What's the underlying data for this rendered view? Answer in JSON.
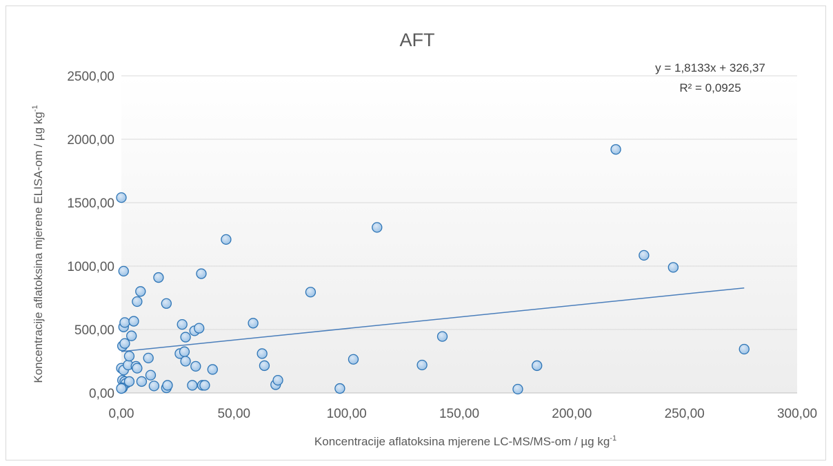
{
  "chart_data": {
    "type": "scatter",
    "title": "AFT",
    "xlabel": "Koncentracije aflatoksina mjerene LC-MS/MS-om / µg kg",
    "xlabel_sup": "-1",
    "ylabel": "Koncentracije aflatoksina mjerene  ELISA-om / µg kg",
    "ylabel_sup": "-1",
    "xlim": [
      0,
      300
    ],
    "ylim": [
      0,
      2500
    ],
    "x_ticks": [
      "0,00",
      "50,00",
      "100,00",
      "150,00",
      "200,00",
      "250,00",
      "300,00"
    ],
    "y_ticks": [
      "0,00",
      "500,00",
      "1000,00",
      "1500,00",
      "2000,00",
      "2500,00"
    ],
    "grid": true,
    "marker_color": "#9dc3e6",
    "marker_edge_color": "#2e75b6",
    "trendline_color": "#4a7ebb",
    "trendline": {
      "slope": 1.8133,
      "intercept": 326.37,
      "equation": "y = 1,8133x + 326,37",
      "r2": "R² = 0,0925"
    },
    "points": [
      {
        "x": 0.0,
        "y": 1540
      },
      {
        "x": 1.0,
        "y": 960
      },
      {
        "x": 1.0,
        "y": 520
      },
      {
        "x": 1.5,
        "y": 555
      },
      {
        "x": 0.5,
        "y": 370
      },
      {
        "x": 1.5,
        "y": 390
      },
      {
        "x": 0.0,
        "y": 195
      },
      {
        "x": 1.0,
        "y": 180
      },
      {
        "x": 0.5,
        "y": 100
      },
      {
        "x": 1.5,
        "y": 90
      },
      {
        "x": 2.0,
        "y": 75
      },
      {
        "x": 0.5,
        "y": 40
      },
      {
        "x": 0.0,
        "y": 35
      },
      {
        "x": 3.0,
        "y": 220
      },
      {
        "x": 3.5,
        "y": 90
      },
      {
        "x": 3.5,
        "y": 290
      },
      {
        "x": 4.5,
        "y": 450
      },
      {
        "x": 5.5,
        "y": 565
      },
      {
        "x": 7.0,
        "y": 720
      },
      {
        "x": 8.5,
        "y": 800
      },
      {
        "x": 6.5,
        "y": 210
      },
      {
        "x": 7.0,
        "y": 195
      },
      {
        "x": 9.0,
        "y": 90
      },
      {
        "x": 12.0,
        "y": 275
      },
      {
        "x": 13.0,
        "y": 140
      },
      {
        "x": 14.5,
        "y": 55
      },
      {
        "x": 16.5,
        "y": 910
      },
      {
        "x": 20.0,
        "y": 705
      },
      {
        "x": 20.0,
        "y": 40
      },
      {
        "x": 20.5,
        "y": 60
      },
      {
        "x": 26.0,
        "y": 310
      },
      {
        "x": 27.0,
        "y": 540
      },
      {
        "x": 28.0,
        "y": 325
      },
      {
        "x": 28.5,
        "y": 440
      },
      {
        "x": 28.5,
        "y": 250
      },
      {
        "x": 31.5,
        "y": 60
      },
      {
        "x": 32.5,
        "y": 490
      },
      {
        "x": 33.0,
        "y": 210
      },
      {
        "x": 34.5,
        "y": 510
      },
      {
        "x": 35.5,
        "y": 940
      },
      {
        "x": 36.0,
        "y": 60
      },
      {
        "x": 37.0,
        "y": 60
      },
      {
        "x": 40.5,
        "y": 185
      },
      {
        "x": 46.5,
        "y": 1210
      },
      {
        "x": 58.5,
        "y": 550
      },
      {
        "x": 62.5,
        "y": 310
      },
      {
        "x": 63.5,
        "y": 215
      },
      {
        "x": 68.5,
        "y": 65
      },
      {
        "x": 69.5,
        "y": 100
      },
      {
        "x": 84.0,
        "y": 795
      },
      {
        "x": 97.0,
        "y": 35
      },
      {
        "x": 103.0,
        "y": 265
      },
      {
        "x": 113.5,
        "y": 1305
      },
      {
        "x": 133.5,
        "y": 220
      },
      {
        "x": 142.5,
        "y": 445
      },
      {
        "x": 176.0,
        "y": 30
      },
      {
        "x": 184.5,
        "y": 215
      },
      {
        "x": 219.5,
        "y": 1920
      },
      {
        "x": 232.0,
        "y": 1085
      },
      {
        "x": 245.0,
        "y": 990
      },
      {
        "x": 276.5,
        "y": 345
      }
    ]
  }
}
